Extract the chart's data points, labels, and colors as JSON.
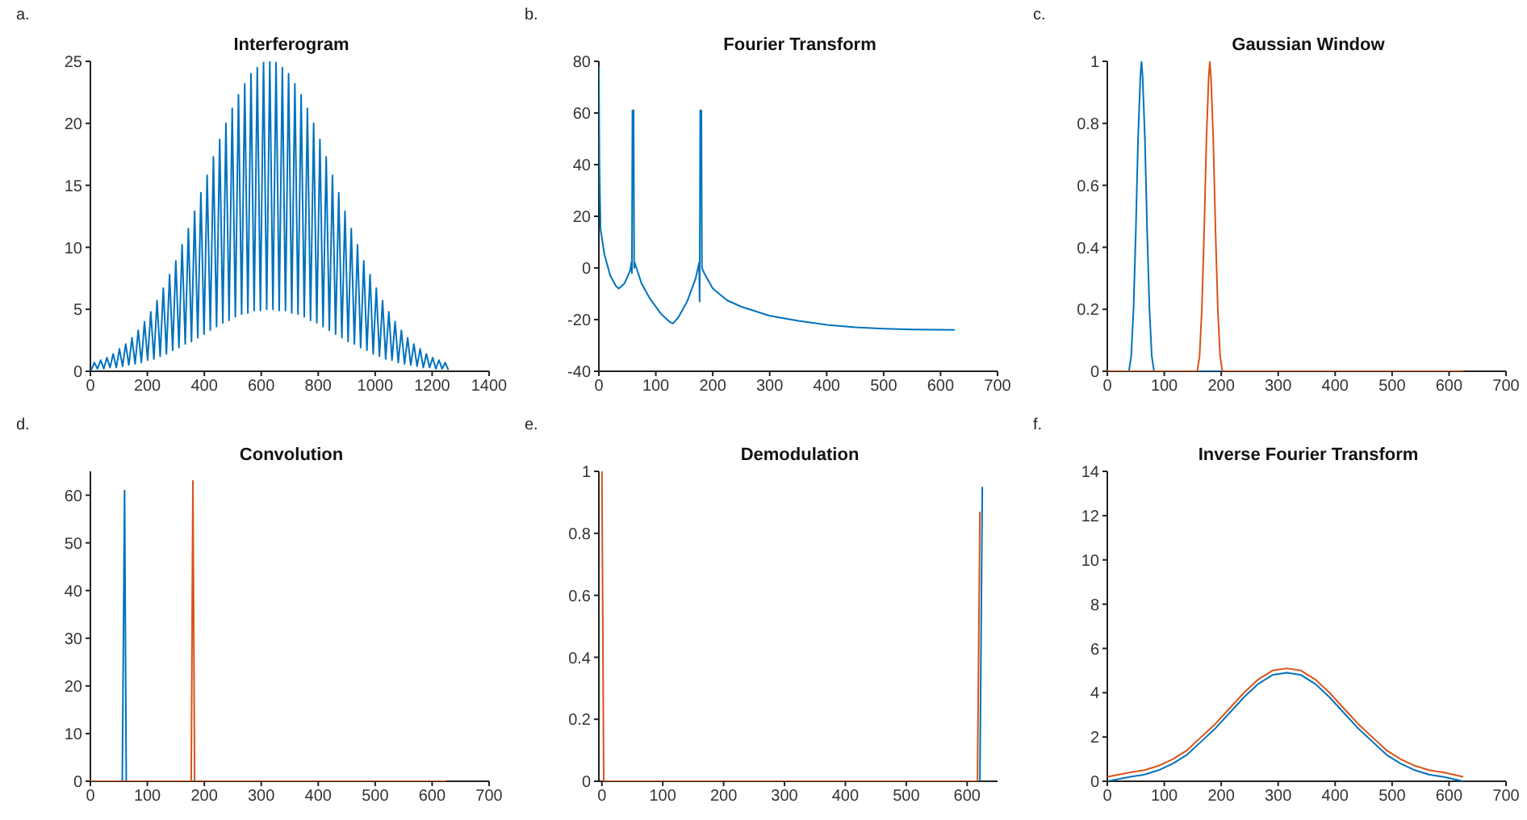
{
  "chart_data": [
    {
      "type": "line",
      "title": "Interferogram",
      "annotations": [
        "a."
      ],
      "xlim": [
        0,
        1400
      ],
      "xticks": [
        0,
        200,
        400,
        600,
        800,
        1000,
        1200,
        1400
      ],
      "ylim": [
        0,
        25
      ],
      "yticks": [
        0,
        5,
        10,
        15,
        20,
        25
      ],
      "series": [
        {
          "color": "#0072bd",
          "x": [
            3,
            14,
            25,
            36,
            47,
            58,
            69,
            80,
            91,
            102,
            113,
            124,
            135,
            146,
            157,
            168,
            179,
            190,
            201,
            212,
            223,
            234,
            245,
            256,
            267,
            278,
            289,
            300,
            311,
            322,
            333,
            344,
            355,
            366,
            377,
            388,
            399,
            410,
            421,
            432,
            443,
            454,
            465,
            476,
            487,
            498,
            509,
            520,
            531,
            542,
            553,
            564,
            575,
            586,
            597,
            608,
            619,
            630,
            641,
            652,
            663,
            674,
            685,
            696,
            707,
            718,
            729,
            740,
            751,
            762,
            773,
            784,
            795,
            806,
            817,
            828,
            839,
            850,
            861,
            872,
            883,
            894,
            905,
            916,
            927,
            938,
            949,
            960,
            971,
            982,
            993,
            1004,
            1015,
            1026,
            1037,
            1048,
            1059,
            1070,
            1081,
            1092,
            1103,
            1114,
            1125,
            1136,
            1147,
            1158,
            1169,
            1180,
            1191,
            1202,
            1213,
            1224,
            1235,
            1246,
            1257
          ],
          "values": [
            0.1,
            0.7,
            0.2,
            0.9,
            0.2,
            1.1,
            0.3,
            1.4,
            0.3,
            1.8,
            0.4,
            2.2,
            0.5,
            2.7,
            0.6,
            3.3,
            0.7,
            4.0,
            0.9,
            4.8,
            1.0,
            5.7,
            1.2,
            6.7,
            1.4,
            7.8,
            1.7,
            8.9,
            1.9,
            10.2,
            2.2,
            11.5,
            2.4,
            12.9,
            2.7,
            14.4,
            3.0,
            15.8,
            3.3,
            17.3,
            3.6,
            18.7,
            3.9,
            20.0,
            4.1,
            21.2,
            4.4,
            22.3,
            4.6,
            23.2,
            4.7,
            24.0,
            4.9,
            24.5,
            4.9,
            24.9,
            5.0,
            25.0,
            5.0,
            24.9,
            4.9,
            24.5,
            4.9,
            24.0,
            4.7,
            23.2,
            4.6,
            22.3,
            4.4,
            21.2,
            4.1,
            20.0,
            3.9,
            18.7,
            3.6,
            17.3,
            3.3,
            15.8,
            3.0,
            14.4,
            2.7,
            12.9,
            2.4,
            11.5,
            2.2,
            10.2,
            1.9,
            8.9,
            1.7,
            7.8,
            1.4,
            6.7,
            1.2,
            5.7,
            1.0,
            4.8,
            0.9,
            4.0,
            0.7,
            3.3,
            0.6,
            2.7,
            0.5,
            2.2,
            0.4,
            1.8,
            0.3,
            1.4,
            0.3,
            1.1,
            0.2,
            0.9,
            0.2,
            0.7,
            0.1
          ]
        }
      ]
    },
    {
      "type": "line",
      "title": "Fourier Transform",
      "annotations": [
        "b."
      ],
      "xlim": [
        0,
        700
      ],
      "xticks": [
        0,
        100,
        200,
        300,
        400,
        500,
        600,
        700
      ],
      "ylim": [
        -40,
        80
      ],
      "yticks": [
        -40,
        -20,
        0,
        20,
        40,
        60,
        80
      ],
      "series": [
        {
          "color": "#0072bd",
          "x": [
            0,
            1,
            3,
            5,
            10,
            20,
            30,
            35,
            45,
            55,
            57,
            58,
            59,
            61,
            62,
            63,
            66,
            75,
            90,
            110,
            125,
            130,
            140,
            155,
            170,
            176,
            177,
            178,
            180,
            181,
            185,
            200,
            225,
            250,
            300,
            350,
            400,
            450,
            500,
            550,
            625
          ],
          "values": [
            78,
            40,
            15,
            12,
            5,
            -3,
            -7,
            -8,
            -6,
            -1,
            2,
            -2,
            61,
            61,
            0,
            2,
            0,
            -6,
            -12,
            -18,
            -21,
            -21.5,
            -19,
            -13,
            -4,
            2,
            -13,
            61,
            61,
            0,
            -2,
            -8,
            -12.5,
            -15,
            -18.5,
            -20.5,
            -22,
            -23,
            -23.5,
            -23.8,
            -24
          ]
        }
      ]
    },
    {
      "type": "line",
      "title": "Gaussian Window",
      "annotations": [
        "c."
      ],
      "xlim": [
        0,
        700
      ],
      "xticks": [
        0,
        100,
        200,
        300,
        400,
        500,
        600,
        700
      ],
      "ylim": [
        0,
        1
      ],
      "yticks": [
        0,
        0.2,
        0.4,
        0.6,
        0.8,
        1
      ],
      "series": [
        {
          "color": "#0072bd",
          "x": [
            0,
            38,
            42,
            46,
            50,
            54,
            58,
            60,
            62,
            66,
            70,
            74,
            78,
            82,
            625
          ],
          "values": [
            0,
            0,
            0.05,
            0.2,
            0.45,
            0.75,
            0.95,
            1,
            0.95,
            0.75,
            0.45,
            0.2,
            0.05,
            0,
            0
          ]
        },
        {
          "color": "#d95319",
          "x": [
            0,
            158,
            162,
            166,
            170,
            174,
            178,
            180,
            182,
            186,
            190,
            194,
            198,
            202,
            625
          ],
          "values": [
            0,
            0,
            0.05,
            0.2,
            0.45,
            0.75,
            0.95,
            1,
            0.95,
            0.75,
            0.45,
            0.2,
            0.05,
            0,
            0
          ]
        }
      ]
    },
    {
      "type": "line",
      "title": "Convolution",
      "annotations": [
        "d."
      ],
      "xlim": [
        0,
        700
      ],
      "xticks": [
        0,
        100,
        200,
        300,
        400,
        500,
        600,
        700
      ],
      "ylim": [
        0,
        65
      ],
      "yticks": [
        0,
        10,
        20,
        30,
        40,
        50,
        60
      ],
      "series": [
        {
          "color": "#0072bd",
          "x": [
            0,
            56,
            60,
            63,
            625
          ],
          "values": [
            0,
            0,
            61,
            0,
            0
          ]
        },
        {
          "color": "#d95319",
          "x": [
            0,
            177,
            180,
            183,
            625
          ],
          "values": [
            0,
            0,
            63,
            0,
            0
          ]
        }
      ]
    },
    {
      "type": "line",
      "title": "Demodulation",
      "annotations": [
        "e."
      ],
      "xlim": [
        -5,
        650
      ],
      "xticks": [
        0,
        100,
        200,
        300,
        400,
        500,
        600
      ],
      "ylim": [
        0,
        1
      ],
      "yticks": [
        0,
        0.2,
        0.4,
        0.6,
        0.8,
        1
      ],
      "series": [
        {
          "color": "#0072bd",
          "x": [
            621,
            625
          ],
          "values": [
            0,
            0.95
          ]
        },
        {
          "color": "#d95319",
          "x": [
            0,
            3,
            617,
            621
          ],
          "values": [
            1,
            0,
            0,
            0.87
          ]
        }
      ]
    },
    {
      "type": "line",
      "title": "Inverse Fourier Transform",
      "annotations": [
        "f."
      ],
      "xlim": [
        0,
        700
      ],
      "xticks": [
        0,
        100,
        200,
        300,
        400,
        500,
        600,
        700
      ],
      "ylim": [
        0,
        14
      ],
      "yticks": [
        0,
        2,
        4,
        6,
        8,
        10,
        12,
        14
      ],
      "series": [
        {
          "color": "#0072bd",
          "x": [
            0,
            40,
            65,
            90,
            115,
            140,
            165,
            190,
            215,
            240,
            265,
            290,
            315,
            340,
            365,
            390,
            415,
            440,
            465,
            490,
            515,
            540,
            565,
            590,
            625
          ],
          "values": [
            0.0,
            0.2,
            0.3,
            0.5,
            0.8,
            1.2,
            1.8,
            2.4,
            3.1,
            3.8,
            4.4,
            4.8,
            4.9,
            4.8,
            4.4,
            3.8,
            3.1,
            2.4,
            1.8,
            1.2,
            0.8,
            0.5,
            0.3,
            0.2,
            0.0
          ]
        },
        {
          "color": "#d95319",
          "x": [
            0,
            40,
            65,
            90,
            115,
            140,
            165,
            190,
            215,
            240,
            265,
            290,
            315,
            340,
            365,
            390,
            415,
            440,
            465,
            490,
            515,
            540,
            565,
            590,
            625
          ],
          "values": [
            0.2,
            0.4,
            0.5,
            0.7,
            1.0,
            1.4,
            2.0,
            2.6,
            3.3,
            4.0,
            4.6,
            5.0,
            5.1,
            5.0,
            4.6,
            4.0,
            3.3,
            2.6,
            2.0,
            1.4,
            1.0,
            0.7,
            0.5,
            0.4,
            0.2
          ]
        }
      ]
    }
  ]
}
